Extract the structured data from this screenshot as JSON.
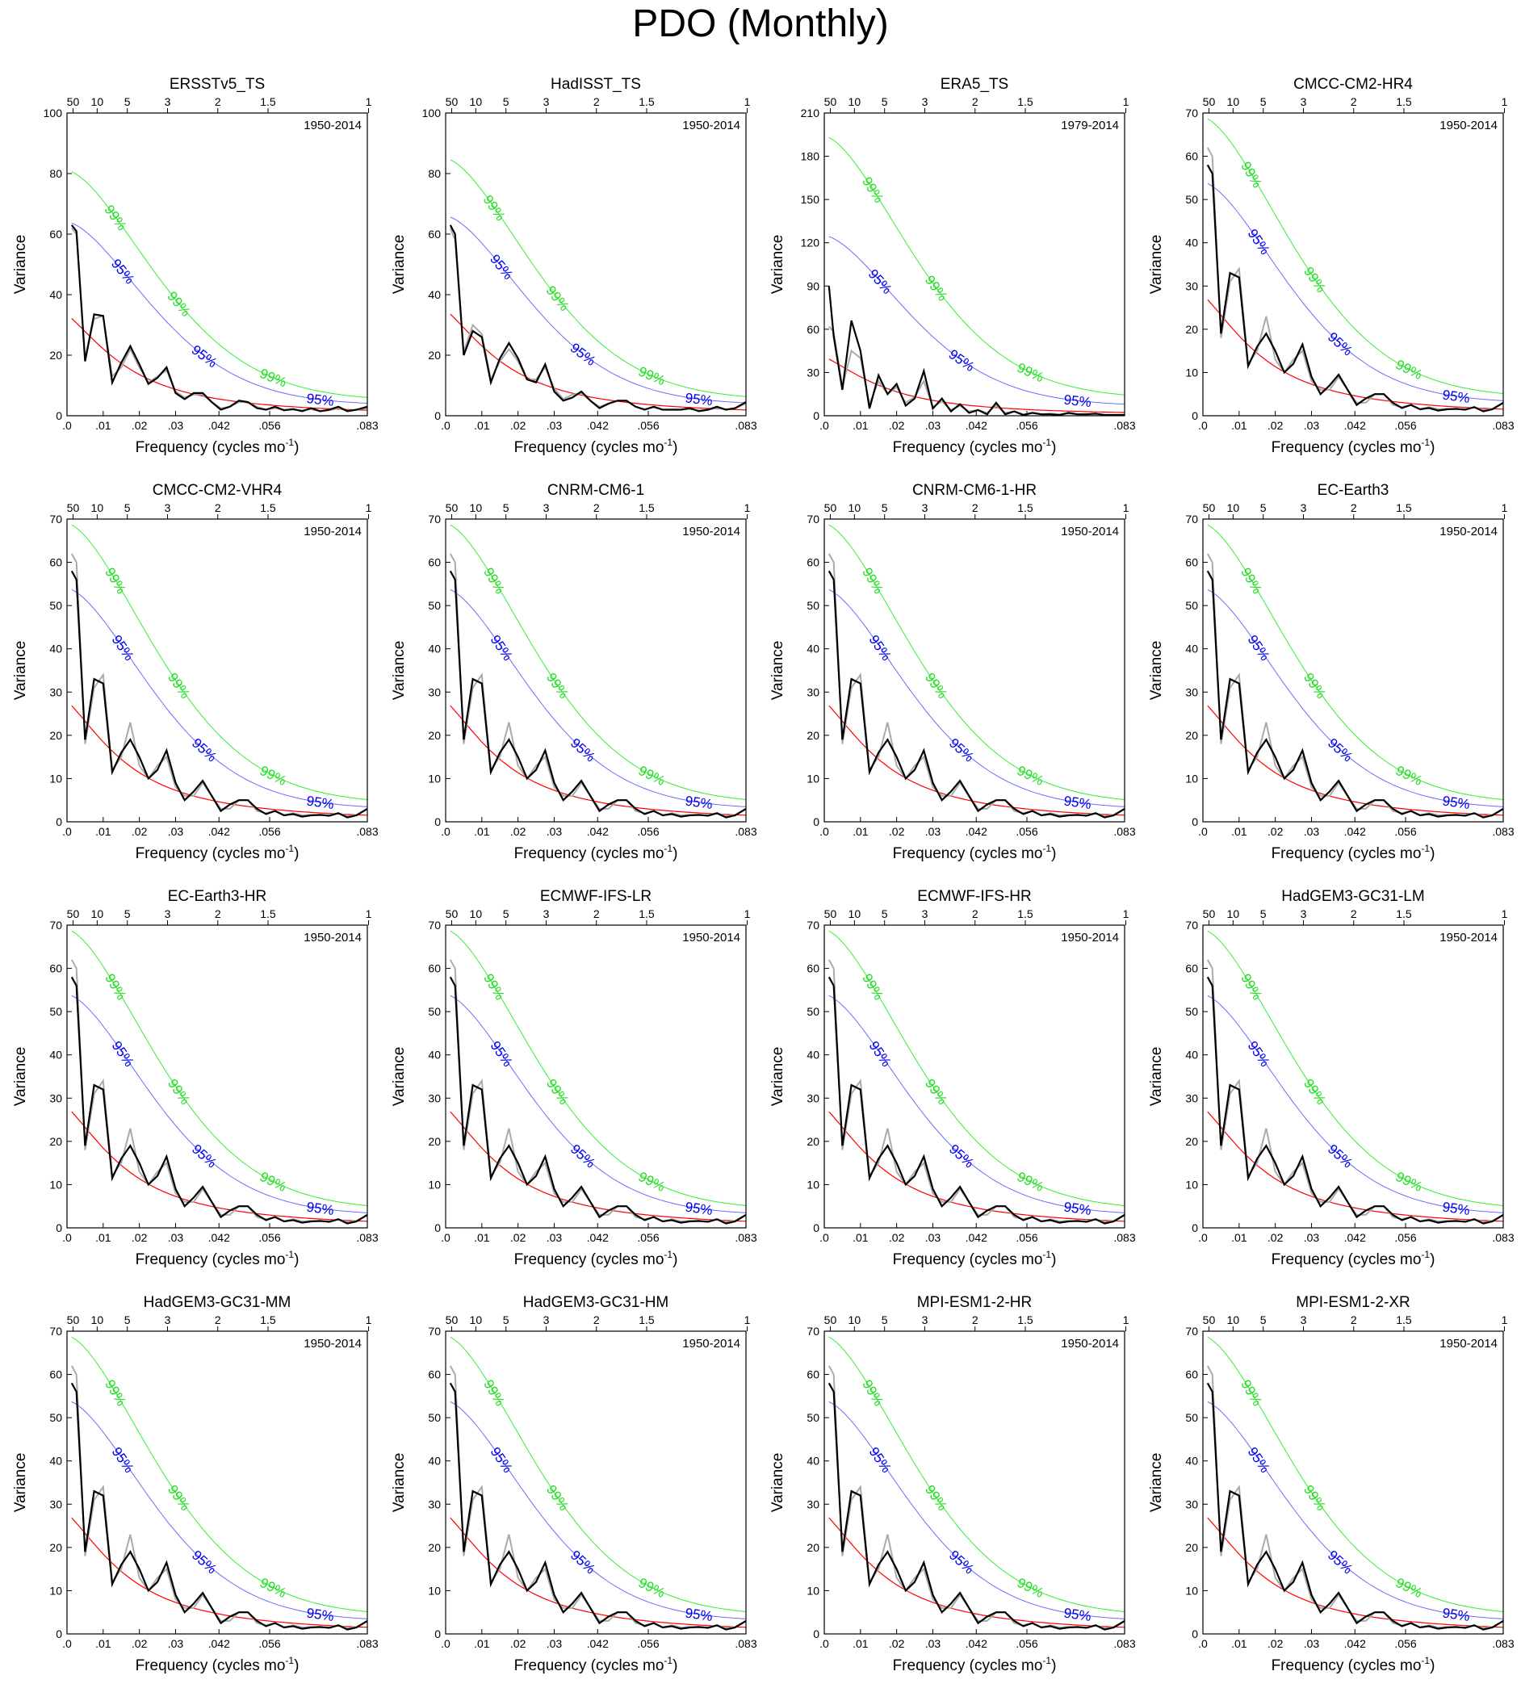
{
  "figure": {
    "title": "PDO (Monthly)"
  },
  "common": {
    "type": "line",
    "xlabel": "Frequency (cycles mo",
    "xlabel_sup": "-1",
    "ylabel": "Variance",
    "x_ticks": [
      0,
      0.01,
      0.02,
      0.03,
      0.042,
      0.056,
      0.083
    ],
    "x_tick_labels": [
      ".0",
      ".01",
      ".02",
      ".03",
      ".042",
      ".056",
      ".083"
    ],
    "xlim": [
      0,
      0.083
    ],
    "period_ticks": [
      50,
      10,
      5,
      3,
      2,
      1.5,
      1
    ],
    "period_tick_labels": [
      "50",
      "10",
      "5",
      "3",
      "2",
      "1.5",
      "1"
    ],
    "conf_labels": {
      "c99": "99%",
      "c95": "95%"
    },
    "colors": {
      "spectrum": "#000000",
      "spectrum_alt": "#aaaaaa",
      "red_noise": "#ff0000",
      "c95": "#6a6aff",
      "c99": "#33ee33",
      "c95_text": "#0000ee",
      "c99_text": "#22dd22"
    },
    "frequencies": [
      0.0013,
      0.0026,
      0.005,
      0.0075,
      0.01,
      0.0125,
      0.015,
      0.0175,
      0.02,
      0.0225,
      0.025,
      0.0275,
      0.03,
      0.0325,
      0.035,
      0.0375,
      0.04,
      0.0425,
      0.045,
      0.0475,
      0.05,
      0.0525,
      0.055,
      0.0575,
      0.06,
      0.0625,
      0.065,
      0.0675,
      0.07,
      0.0725,
      0.075,
      0.0775,
      0.08,
      0.083
    ],
    "model_spectrum": [
      58,
      56,
      19,
      33,
      32,
      11.5,
      16,
      19,
      15,
      10,
      12,
      16.5,
      9,
      5,
      7,
      9.5,
      6,
      2.5,
      4,
      5,
      5,
      3,
      1.8,
      2.5,
      1.5,
      1.8,
      1.2,
      1.5,
      1.6,
      1.4,
      2,
      1,
      1.5,
      3
    ],
    "model_spectrum_alt": [
      62,
      60,
      18,
      31,
      34,
      12,
      15,
      23,
      13,
      10,
      13,
      15,
      8,
      6,
      6,
      9,
      6,
      3,
      3,
      5,
      5,
      2.5,
      2,
      2.5,
      1.5,
      2,
      1.5,
      1.6,
      1.5,
      1.5,
      2,
      1.3,
      1.6,
      3
    ]
  },
  "chart_data": [
    {
      "title": "ERSSTv5_TS",
      "period": "1950-2014",
      "ylim": [
        0,
        100
      ],
      "yticks": [
        0,
        20,
        40,
        60,
        80,
        100
      ],
      "red_noise_y0": 33.5,
      "c95_y0": 64,
      "c99_y0": 81,
      "spectrum": [
        63,
        61,
        18,
        33.5,
        33,
        11,
        17.5,
        23,
        17,
        10.5,
        12.5,
        16,
        7.5,
        5.5,
        7.5,
        7.5,
        4.5,
        2,
        3,
        5,
        4.5,
        2.5,
        2,
        3,
        1.8,
        2.2,
        1.5,
        2.5,
        1.5,
        2,
        3,
        1.5,
        2,
        3
      ],
      "spectrum_alt": [
        62,
        60,
        19,
        32,
        33,
        13,
        16,
        22,
        16,
        11,
        13,
        15,
        8,
        6,
        7,
        7,
        4.5,
        2.5,
        3,
        4.5,
        4.5,
        3,
        2,
        2.5,
        2,
        2,
        1.8,
        2.2,
        1.5,
        1.8,
        2.5,
        1.6,
        2,
        2.5
      ],
      "c99_lab_f": [
        0.0135,
        0.031,
        0.057
      ],
      "c95_lab_f": [
        0.0155,
        0.038,
        0.07
      ]
    },
    {
      "title": "HadISST_TS",
      "period": "1950-2014",
      "ylim": [
        0,
        100
      ],
      "yticks": [
        0,
        20,
        40,
        60,
        80,
        100
      ],
      "red_noise_y0": 35,
      "c95_y0": 66,
      "c99_y0": 85,
      "spectrum": [
        63,
        60,
        20,
        28,
        26,
        11,
        19,
        24,
        19,
        12,
        11,
        17,
        8,
        5,
        6,
        8,
        5,
        2.5,
        4,
        5,
        5,
        3,
        2,
        3,
        2,
        2,
        2,
        2.5,
        1.5,
        2,
        3,
        2,
        2.5,
        4.5
      ],
      "spectrum_alt": [
        62,
        58,
        21,
        30,
        27,
        12,
        18,
        22,
        18,
        12,
        12,
        16,
        9,
        5.5,
        7,
        7.5,
        5,
        3,
        4,
        5,
        5,
        3,
        2.2,
        2.8,
        2,
        2,
        2,
        2.2,
        1.8,
        2,
        2.5,
        2,
        2.5,
        4
      ],
      "c99_lab_f": [
        0.0135,
        0.031,
        0.057
      ],
      "c95_lab_f": [
        0.0155,
        0.038,
        0.07
      ]
    },
    {
      "title": "ERA5_TS",
      "period": "1979-2014",
      "ylim": [
        0,
        210
      ],
      "yticks": [
        0,
        30,
        60,
        90,
        120,
        150,
        180,
        210
      ],
      "red_noise_y0": 41,
      "c95_y0": 125,
      "c99_y0": 194,
      "spectrum": [
        90,
        55,
        18,
        66,
        45,
        5,
        28,
        15,
        22,
        7,
        12,
        31,
        5,
        12,
        3,
        8,
        2,
        4,
        1,
        9,
        1,
        3,
        0.5,
        2,
        1,
        1,
        0.5,
        2,
        1,
        1,
        1.5,
        0.5,
        0.5,
        0.5
      ],
      "spectrum_alt": [
        62,
        58,
        20,
        45,
        40,
        8,
        24,
        15,
        20,
        9,
        13,
        24,
        6,
        10,
        4,
        7,
        3,
        4,
        2,
        7,
        2,
        3,
        1,
        2,
        1,
        1.5,
        1,
        1.5,
        1,
        1,
        1,
        0.8,
        0.8,
        0.8
      ],
      "c99_lab_f": [
        0.0135,
        0.031,
        0.057
      ],
      "c95_lab_f": [
        0.0155,
        0.038,
        0.07
      ]
    },
    {
      "title": "CMCC-CM2-HR4",
      "period": "1950-2014",
      "ylim": [
        0,
        70
      ],
      "yticks": [
        0,
        10,
        20,
        30,
        40,
        50,
        60,
        70
      ],
      "red_noise_y0": 28,
      "c95_y0": 54,
      "c99_y0": 69,
      "c99_lab_f": [
        0.0135,
        0.031,
        0.057
      ],
      "c95_lab_f": [
        0.0155,
        0.038,
        0.07
      ]
    },
    {
      "title": "CMCC-CM2-VHR4",
      "period": "1950-2014",
      "ylim": [
        0,
        70
      ],
      "yticks": [
        0,
        10,
        20,
        30,
        40,
        50,
        60,
        70
      ],
      "red_noise_y0": 28,
      "c95_y0": 54,
      "c99_y0": 69,
      "c99_lab_f": [
        0.0135,
        0.031,
        0.057
      ],
      "c95_lab_f": [
        0.0155,
        0.038,
        0.07
      ]
    },
    {
      "title": "CNRM-CM6-1",
      "period": "1950-2014",
      "ylim": [
        0,
        70
      ],
      "yticks": [
        0,
        10,
        20,
        30,
        40,
        50,
        60,
        70
      ],
      "red_noise_y0": 28,
      "c95_y0": 54,
      "c99_y0": 69,
      "c99_lab_f": [
        0.0135,
        0.031,
        0.057
      ],
      "c95_lab_f": [
        0.0155,
        0.038,
        0.07
      ]
    },
    {
      "title": "CNRM-CM6-1-HR",
      "period": "1950-2014",
      "ylim": [
        0,
        70
      ],
      "yticks": [
        0,
        10,
        20,
        30,
        40,
        50,
        60,
        70
      ],
      "red_noise_y0": 28,
      "c95_y0": 54,
      "c99_y0": 69,
      "c99_lab_f": [
        0.0135,
        0.031,
        0.057
      ],
      "c95_lab_f": [
        0.0155,
        0.038,
        0.07
      ]
    },
    {
      "title": "EC-Earth3",
      "period": "1950-2014",
      "ylim": [
        0,
        70
      ],
      "yticks": [
        0,
        10,
        20,
        30,
        40,
        50,
        60,
        70
      ],
      "red_noise_y0": 28,
      "c95_y0": 54,
      "c99_y0": 69,
      "c99_lab_f": [
        0.0135,
        0.031,
        0.057
      ],
      "c95_lab_f": [
        0.0155,
        0.038,
        0.07
      ]
    },
    {
      "title": "EC-Earth3-HR",
      "period": "1950-2014",
      "ylim": [
        0,
        70
      ],
      "yticks": [
        0,
        10,
        20,
        30,
        40,
        50,
        60,
        70
      ],
      "red_noise_y0": 28,
      "c95_y0": 54,
      "c99_y0": 69,
      "c99_lab_f": [
        0.0135,
        0.031,
        0.057
      ],
      "c95_lab_f": [
        0.0155,
        0.038,
        0.07
      ]
    },
    {
      "title": "ECMWF-IFS-LR",
      "period": "1950-2014",
      "ylim": [
        0,
        70
      ],
      "yticks": [
        0,
        10,
        20,
        30,
        40,
        50,
        60,
        70
      ],
      "red_noise_y0": 28,
      "c95_y0": 54,
      "c99_y0": 69,
      "c99_lab_f": [
        0.0135,
        0.031,
        0.057
      ],
      "c95_lab_f": [
        0.0155,
        0.038,
        0.07
      ]
    },
    {
      "title": "ECMWF-IFS-HR",
      "period": "1950-2014",
      "ylim": [
        0,
        70
      ],
      "yticks": [
        0,
        10,
        20,
        30,
        40,
        50,
        60,
        70
      ],
      "red_noise_y0": 28,
      "c95_y0": 54,
      "c99_y0": 69,
      "c99_lab_f": [
        0.0135,
        0.031,
        0.057
      ],
      "c95_lab_f": [
        0.0155,
        0.038,
        0.07
      ]
    },
    {
      "title": "HadGEM3-GC31-LM",
      "period": "1950-2014",
      "ylim": [
        0,
        70
      ],
      "yticks": [
        0,
        10,
        20,
        30,
        40,
        50,
        60,
        70
      ],
      "red_noise_y0": 28,
      "c95_y0": 54,
      "c99_y0": 69,
      "c99_lab_f": [
        0.0135,
        0.031,
        0.057
      ],
      "c95_lab_f": [
        0.0155,
        0.038,
        0.07
      ]
    },
    {
      "title": "HadGEM3-GC31-MM",
      "period": "1950-2014",
      "ylim": [
        0,
        70
      ],
      "yticks": [
        0,
        10,
        20,
        30,
        40,
        50,
        60,
        70
      ],
      "red_noise_y0": 28,
      "c95_y0": 54,
      "c99_y0": 69,
      "c99_lab_f": [
        0.0135,
        0.031,
        0.057
      ],
      "c95_lab_f": [
        0.0155,
        0.038,
        0.07
      ]
    },
    {
      "title": "HadGEM3-GC31-HM",
      "period": "1950-2014",
      "ylim": [
        0,
        70
      ],
      "yticks": [
        0,
        10,
        20,
        30,
        40,
        50,
        60,
        70
      ],
      "red_noise_y0": 28,
      "c95_y0": 54,
      "c99_y0": 69,
      "c99_lab_f": [
        0.0135,
        0.031,
        0.057
      ],
      "c95_lab_f": [
        0.0155,
        0.038,
        0.07
      ]
    },
    {
      "title": "MPI-ESM1-2-HR",
      "period": "1950-2014",
      "ylim": [
        0,
        70
      ],
      "yticks": [
        0,
        10,
        20,
        30,
        40,
        50,
        60,
        70
      ],
      "red_noise_y0": 28,
      "c95_y0": 54,
      "c99_y0": 69,
      "c99_lab_f": [
        0.0135,
        0.031,
        0.057
      ],
      "c95_lab_f": [
        0.0155,
        0.038,
        0.07
      ]
    },
    {
      "title": "MPI-ESM1-2-XR",
      "period": "1950-2014",
      "ylim": [
        0,
        70
      ],
      "yticks": [
        0,
        10,
        20,
        30,
        40,
        50,
        60,
        70
      ],
      "red_noise_y0": 28,
      "c95_y0": 54,
      "c99_y0": 69,
      "c99_lab_f": [
        0.0135,
        0.031,
        0.057
      ],
      "c95_lab_f": [
        0.0155,
        0.038,
        0.07
      ]
    }
  ]
}
